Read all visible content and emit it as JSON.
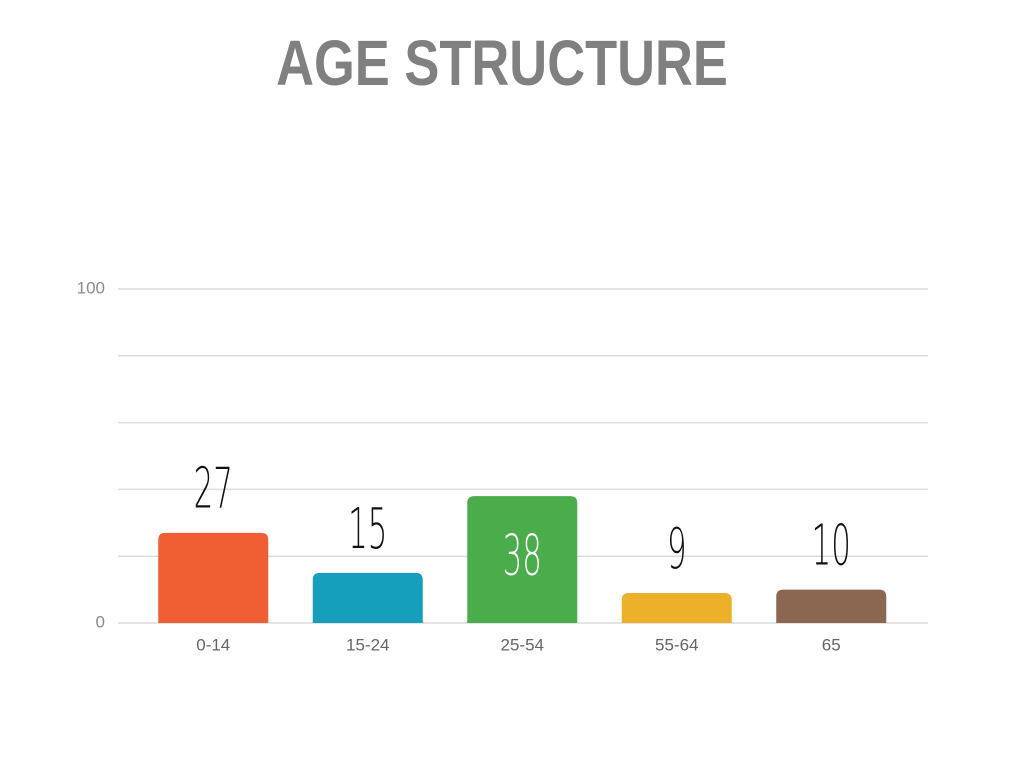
{
  "chart_data": {
    "type": "bar",
    "title": "AGE STRUCTURE",
    "categories": [
      "0-14",
      "15-24",
      "25-54",
      "55-64",
      "65"
    ],
    "values": [
      27,
      15,
      38,
      9,
      10
    ],
    "colors": [
      "#f05f33",
      "#159fba",
      "#4aac4b",
      "#ecb02a",
      "#8b6651"
    ],
    "ylim": [
      0,
      100
    ],
    "yticks": [
      0,
      100
    ],
    "gridlines": [
      0,
      20,
      40,
      60,
      80,
      100
    ],
    "grid": true
  }
}
